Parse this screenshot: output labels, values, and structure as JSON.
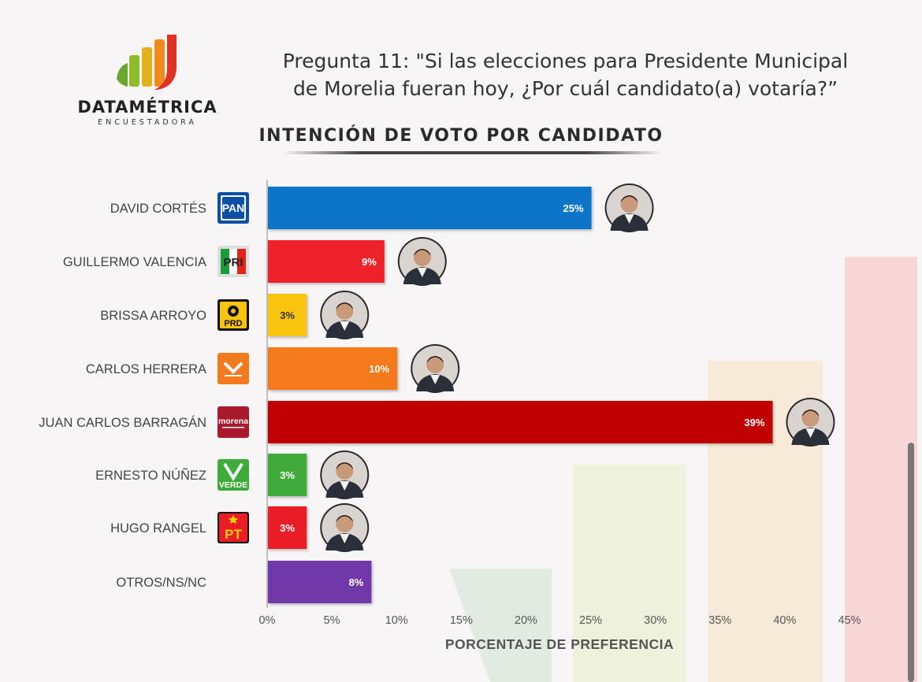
{
  "logo": {
    "brand": "DATAMÉTRICA",
    "tagline": "ENCUESTADORA"
  },
  "question": "Pregunta 11: \"Si las elecciones para Presidente Municipal de Morelia fueran hoy, ¿Por cuál candidato(a) votaría?”",
  "colors": {
    "pan": "#0a74c7",
    "pri": "#ee232b",
    "prd": "#f8c40b",
    "mc": "#f47a1f",
    "morena": "#c00000",
    "verde": "#3fab3a",
    "pt": "#ea1d25",
    "otros": "#7038a8"
  },
  "chart_data": {
    "type": "bar",
    "orientation": "horizontal",
    "title": "INTENCIÓN DE VOTO POR CANDIDATO",
    "xlabel": "PORCENTAJE DE PREFERENCIA",
    "xlim": [
      0,
      45
    ],
    "xticks": [
      "0%",
      "5%",
      "10%",
      "15%",
      "20%",
      "25%",
      "30%",
      "35%",
      "40%",
      "45%"
    ],
    "grid": false,
    "categories": [
      "DAVID CORTÉS",
      "GUILLERMO VALENCIA",
      "BRISSA ARROYO",
      "CARLOS HERRERA",
      "JUAN CARLOS BARRAGÁN",
      "ERNESTO NÚÑEZ",
      "HUGO RANGEL",
      "OTROS/NS/NC"
    ],
    "values": [
      25,
      9,
      3,
      10,
      39,
      3,
      3,
      8
    ],
    "value_labels": [
      "25%",
      "9%",
      "3%",
      "10%",
      "39%",
      "3%",
      "3%",
      "8%"
    ],
    "parties": [
      "PAN",
      "PRI",
      "PRD",
      "MC",
      "morena",
      "VERDE",
      "PT",
      ""
    ],
    "bar_colors": [
      "#0a74c7",
      "#ee232b",
      "#f8c40b",
      "#f47a1f",
      "#c00000",
      "#3fab3a",
      "#ea1d25",
      "#7038a8"
    ]
  }
}
